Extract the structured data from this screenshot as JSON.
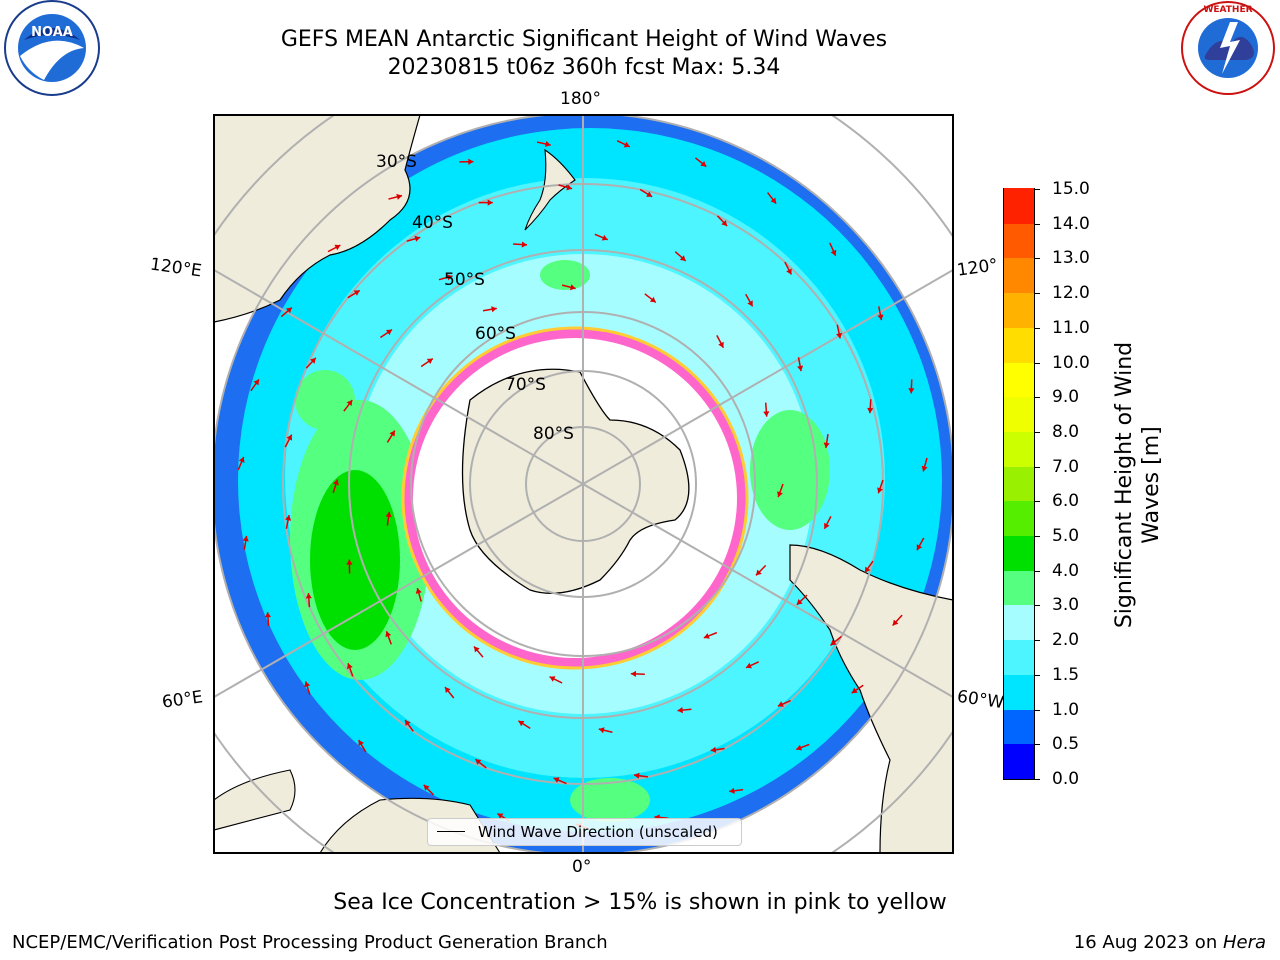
{
  "header": {
    "title_line1": "GEFS MEAN Antarctic Significant Height of Wind Waves",
    "title_line2": "20230815 t06z 360h fcst   Max: 5.34"
  },
  "logos": {
    "left": "noaa-logo",
    "right": "national-weather-service-logo"
  },
  "map": {
    "projection": "south-polar-stereographic",
    "longitude_labels": {
      "top": "180°",
      "bottom": "0°",
      "left_upper": "120°E",
      "left_lower": "60°E",
      "right_upper": "120°",
      "right_lower": "60°W"
    },
    "latitude_labels": [
      "30°S",
      "40°S",
      "50°S",
      "60°S",
      "70°S",
      "80°S"
    ],
    "legend": "Wind Wave Direction (unscaled)"
  },
  "colorbar": {
    "label": "Significant Height of Wind Waves [m]",
    "label_lines": [
      "Significant Height of Wind",
      "Waves [m]"
    ],
    "ticks": [
      "15.0",
      "14.0",
      "13.0",
      "12.0",
      "11.0",
      "10.0",
      "9.0",
      "8.0",
      "7.0",
      "6.0",
      "5.0",
      "4.0",
      "3.0",
      "2.0",
      "1.5",
      "1.0",
      "0.5",
      "0.0"
    ],
    "colors": [
      "#0000ff",
      "#0066ff",
      "#00e5ff",
      "#4cf5ff",
      "#a6fdff",
      "#55ff7f",
      "#00e000",
      "#55ee00",
      "#99f000",
      "#ccff00",
      "#f0ff00",
      "#ffff00",
      "#ffdd00",
      "#ffb300",
      "#ff8800",
      "#ff5a00",
      "#ff2200"
    ]
  },
  "colors": {
    "land": "#efecdc",
    "ice_shelf": "#ffffff",
    "arrow": "#dd0000",
    "grid": "#b0b0b0"
  },
  "footer": {
    "note": "Sea Ice Concentration > 15% is shown in pink to yellow",
    "credit": "NCEP/EMC/Verification Post Processing Product Generation Branch",
    "date": "16 Aug 2023 on ",
    "machine": "Hera"
  }
}
